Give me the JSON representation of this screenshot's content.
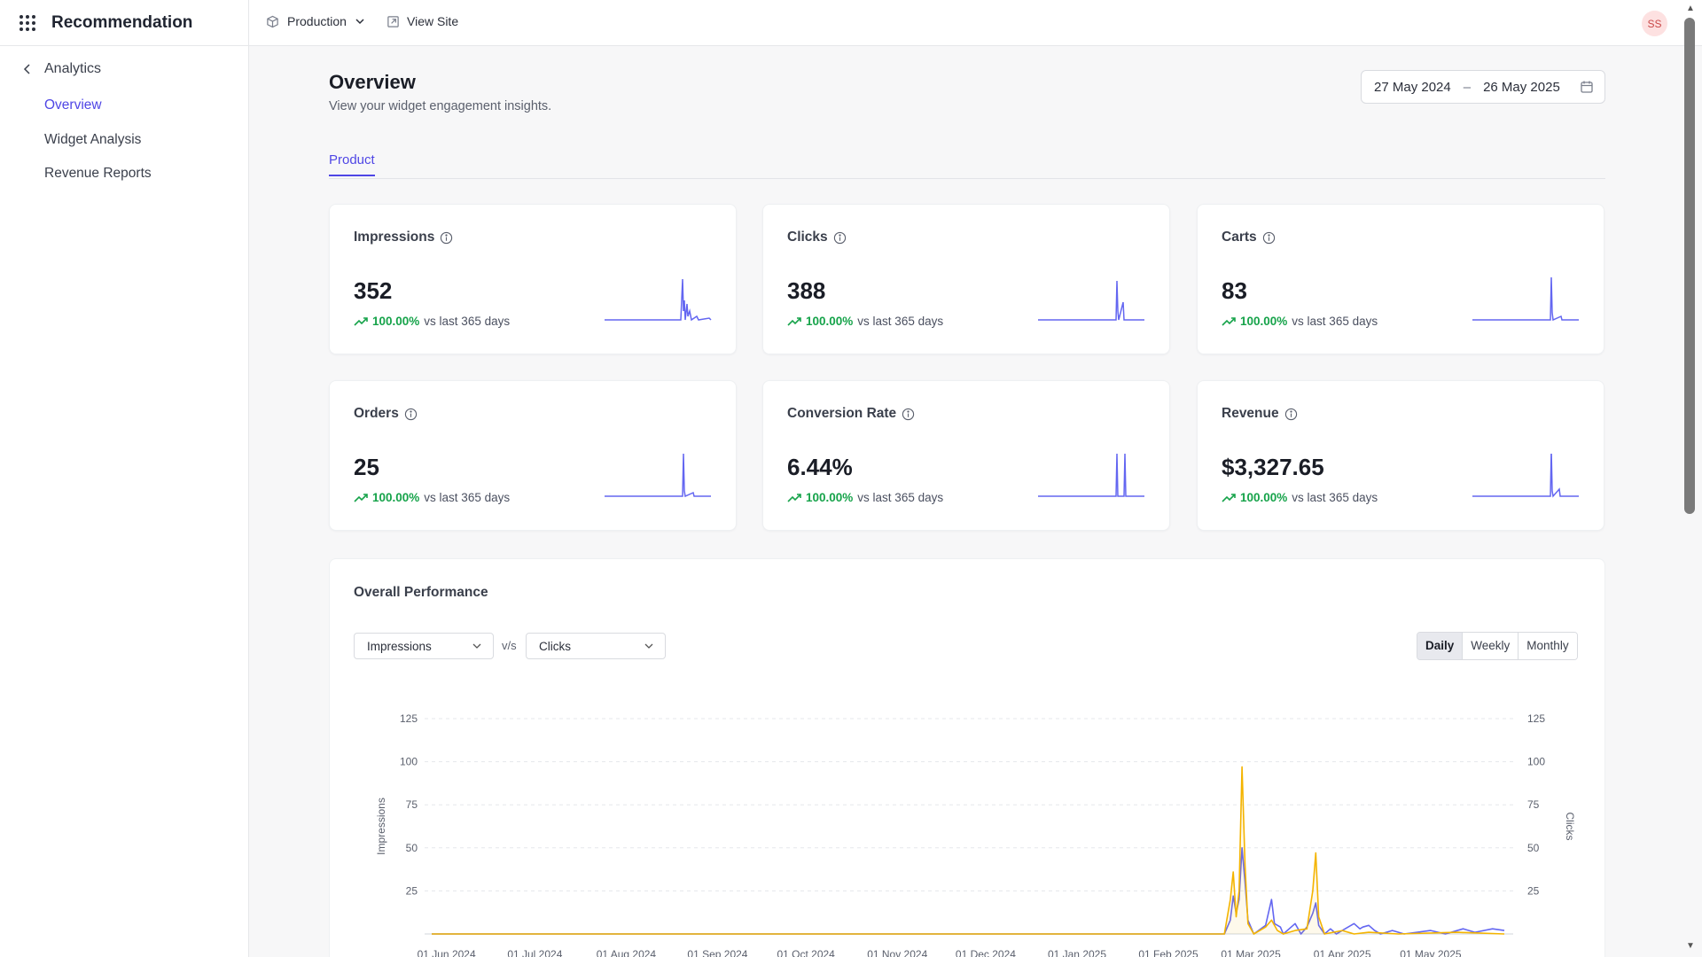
{
  "topbar": {
    "app_title": "Recommendation",
    "environment": "Production",
    "view_site": "View Site",
    "avatar_initials": "SS",
    "avatar_bg": "#fde1e1"
  },
  "sidebar": {
    "back_label": "Analytics",
    "items": [
      {
        "label": "Overview",
        "active": true
      },
      {
        "label": "Widget Analysis",
        "active": false
      },
      {
        "label": "Revenue Reports",
        "active": false
      }
    ]
  },
  "page": {
    "title": "Overview",
    "subtitle": "View your widget engagement insights.",
    "date_from": "27 May 2024",
    "date_sep": "–",
    "date_to": "26 May 2025",
    "tabs": [
      "Product"
    ]
  },
  "colors": {
    "accent": "#4f46e5",
    "positive": "#16a34a",
    "series_primary": "#6366f1",
    "series_secondary": "#f4b400"
  },
  "cards": [
    {
      "label": "Impressions",
      "value": "352",
      "change": "100.00%",
      "period": "vs last 365 days"
    },
    {
      "label": "Clicks",
      "value": "388",
      "change": "100.00%",
      "period": "vs last 365 days"
    },
    {
      "label": "Carts",
      "value": "83",
      "change": "100.00%",
      "period": "vs last 365 days"
    },
    {
      "label": "Orders",
      "value": "25",
      "change": "100.00%",
      "period": "vs last 365 days"
    },
    {
      "label": "Conversion Rate",
      "value": "6.44%",
      "change": "100.00%",
      "period": "vs last 365 days"
    },
    {
      "label": "Revenue",
      "value": "$3,327.65",
      "change": "100.00%",
      "period": "vs last 365 days"
    }
  ],
  "performance": {
    "title": "Overall Performance",
    "left_metric": "Impressions",
    "vs": "v/s",
    "right_metric": "Clicks",
    "granularity": [
      "Daily",
      "Weekly",
      "Monthly"
    ],
    "granularity_selected": "Daily"
  },
  "chart_data": {
    "type": "line",
    "ylabel_left": "Impressions",
    "ylabel_right": "Clicks",
    "ylim_left": [
      0,
      125
    ],
    "ylim_right": [
      0,
      125
    ],
    "yticks": [
      25,
      50,
      75,
      100,
      125
    ],
    "grid": true,
    "x_tick_labels": [
      "01 Jun 2024",
      "01 Jul 2024",
      "01 Aug 2024",
      "01 Sep 2024",
      "01 Oct 2024",
      "01 Nov 2024",
      "01 Dec 2024",
      "01 Jan 2025",
      "01 Feb 2025",
      "01 Mar 2025",
      "01 Apr 2025",
      "01 May 2025"
    ],
    "x_start": "2024-05-27",
    "x_end": "2025-05-26",
    "series": [
      {
        "name": "Impressions",
        "color": "#6366f1",
        "points": [
          [
            "2024-05-27",
            0
          ],
          [
            "2025-02-20",
            0
          ],
          [
            "2025-02-22",
            8
          ],
          [
            "2025-02-23",
            22
          ],
          [
            "2025-02-24",
            12
          ],
          [
            "2025-02-25",
            20
          ],
          [
            "2025-02-26",
            50
          ],
          [
            "2025-02-27",
            30
          ],
          [
            "2025-02-28",
            8
          ],
          [
            "2025-03-02",
            0
          ],
          [
            "2025-03-06",
            5
          ],
          [
            "2025-03-08",
            20
          ],
          [
            "2025-03-09",
            6
          ],
          [
            "2025-03-11",
            4
          ],
          [
            "2025-03-12",
            0
          ],
          [
            "2025-03-14",
            3
          ],
          [
            "2025-03-16",
            6
          ],
          [
            "2025-03-18",
            0
          ],
          [
            "2025-03-20",
            4
          ],
          [
            "2025-03-22",
            12
          ],
          [
            "2025-03-23",
            18
          ],
          [
            "2025-03-24",
            5
          ],
          [
            "2025-03-26",
            0
          ],
          [
            "2025-03-28",
            3
          ],
          [
            "2025-03-30",
            0
          ],
          [
            "2025-04-01",
            2
          ],
          [
            "2025-04-03",
            4
          ],
          [
            "2025-04-05",
            6
          ],
          [
            "2025-04-07",
            3
          ],
          [
            "2025-04-08",
            4
          ],
          [
            "2025-04-10",
            5
          ],
          [
            "2025-04-12",
            2
          ],
          [
            "2025-04-14",
            0
          ],
          [
            "2025-04-18",
            2
          ],
          [
            "2025-04-22",
            0
          ],
          [
            "2025-05-01",
            2
          ],
          [
            "2025-05-06",
            0
          ],
          [
            "2025-05-12",
            3
          ],
          [
            "2025-05-16",
            1
          ],
          [
            "2025-05-22",
            3
          ],
          [
            "2025-05-26",
            2
          ]
        ]
      },
      {
        "name": "Clicks",
        "color": "#f4b400",
        "points": [
          [
            "2024-05-27",
            0
          ],
          [
            "2025-02-20",
            0
          ],
          [
            "2025-02-22",
            20
          ],
          [
            "2025-02-23",
            36
          ],
          [
            "2025-02-24",
            10
          ],
          [
            "2025-02-25",
            25
          ],
          [
            "2025-02-26",
            97
          ],
          [
            "2025-02-27",
            40
          ],
          [
            "2025-02-28",
            6
          ],
          [
            "2025-03-02",
            0
          ],
          [
            "2025-03-06",
            4
          ],
          [
            "2025-03-08",
            8
          ],
          [
            "2025-03-10",
            2
          ],
          [
            "2025-03-12",
            0
          ],
          [
            "2025-03-16",
            2
          ],
          [
            "2025-03-20",
            3
          ],
          [
            "2025-03-22",
            25
          ],
          [
            "2025-03-23",
            47
          ],
          [
            "2025-03-24",
            10
          ],
          [
            "2025-03-26",
            0
          ],
          [
            "2025-04-01",
            2
          ],
          [
            "2025-04-05",
            0
          ],
          [
            "2025-04-10",
            1
          ],
          [
            "2025-04-20",
            0
          ],
          [
            "2025-05-10",
            1
          ],
          [
            "2025-05-26",
            0
          ]
        ]
      }
    ]
  }
}
